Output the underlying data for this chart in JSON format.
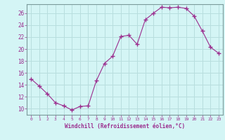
{
  "x": [
    0,
    1,
    2,
    3,
    4,
    5,
    6,
    7,
    8,
    9,
    10,
    11,
    12,
    13,
    14,
    15,
    16,
    17,
    18,
    19,
    20,
    21,
    22,
    23
  ],
  "y": [
    15.0,
    13.8,
    12.5,
    11.0,
    10.5,
    9.8,
    10.4,
    10.5,
    14.7,
    17.6,
    18.8,
    22.1,
    22.3,
    20.8,
    24.9,
    26.0,
    27.0,
    26.9,
    27.0,
    26.8,
    25.5,
    23.0,
    20.3,
    19.3
  ],
  "line_color": "#9b2d8e",
  "marker": "+",
  "marker_size": 4,
  "marker_lw": 1.0,
  "bg_color": "#d4f5f5",
  "grid_color": "#b8dede",
  "xlabel": "Windchill (Refroidissement éolien,°C)",
  "ylabel_ticks": [
    10,
    12,
    14,
    16,
    18,
    20,
    22,
    24,
    26
  ],
  "ylim": [
    9.0,
    27.5
  ],
  "xlim": [
    -0.5,
    23.5
  ]
}
